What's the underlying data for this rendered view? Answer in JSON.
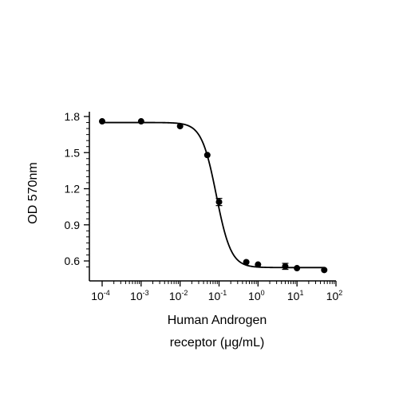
{
  "chart_data": {
    "type": "scatter",
    "title": "",
    "xlabel_lines": [
      "Human Androgen",
      "receptor (μg/mL)"
    ],
    "ylabel": "OD 570nm",
    "x_scale": "log",
    "xlim": [
      0.0001,
      100
    ],
    "ylim": [
      0.48,
      1.85
    ],
    "x_tick_values": [
      0.0001,
      0.001,
      0.01,
      0.1,
      1,
      10,
      100
    ],
    "x_tick_labels": [
      {
        "base": "10",
        "exp": "-4"
      },
      {
        "base": "10",
        "exp": "-3"
      },
      {
        "base": "10",
        "exp": "-2"
      },
      {
        "base": "10",
        "exp": "-1"
      },
      {
        "base": "10",
        "exp": "0"
      },
      {
        "base": "10",
        "exp": "1"
      },
      {
        "base": "10",
        "exp": "2"
      }
    ],
    "y_ticks": [
      0.6,
      0.9,
      1.2,
      1.5,
      1.8
    ],
    "y_tick_labels": [
      "0.6",
      "0.9",
      "1.2",
      "1.5",
      "1.8"
    ],
    "grid": false,
    "legend": "none",
    "series": [
      {
        "x": [
          0.0001,
          0.001,
          0.01,
          0.05,
          0.1,
          0.5,
          1,
          5,
          10,
          50
        ],
        "y": [
          1.76,
          1.76,
          1.72,
          1.48,
          1.09,
          0.59,
          0.57,
          0.555,
          0.54,
          0.525
        ],
        "error": [
          0,
          0,
          0,
          0,
          0.03,
          0,
          0,
          0.025,
          0,
          0
        ]
      }
    ],
    "fit_curve": {
      "model": "4PL",
      "top": 1.75,
      "bottom": 0.545,
      "ec50": 0.085,
      "hill": 2.3
    },
    "colors": {
      "marker": "#000000",
      "line": "#000000"
    }
  }
}
